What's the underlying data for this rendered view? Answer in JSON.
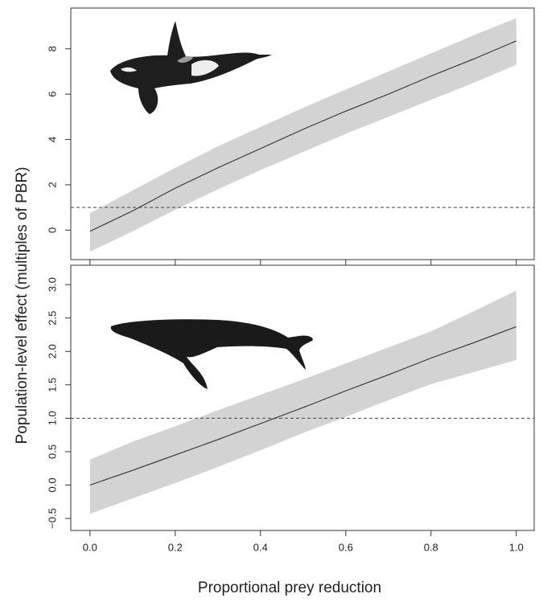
{
  "ylabel": "Population-level effect (multiples of PBR)",
  "xlabel": "Proportional prey reduction",
  "chart_data": [
    {
      "type": "line",
      "x": [
        0,
        0.1,
        0.2,
        0.3,
        0.4,
        0.5,
        0.6,
        0.7,
        0.8,
        0.9,
        1
      ],
      "values": [
        -0.05,
        0.85,
        1.85,
        2.75,
        3.6,
        4.45,
        5.25,
        6.0,
        6.8,
        7.55,
        8.35
      ],
      "lower": [
        -0.95,
        -0.05,
        0.9,
        1.8,
        2.65,
        3.45,
        4.25,
        5.0,
        5.75,
        6.5,
        7.3
      ],
      "upper": [
        0.75,
        1.75,
        2.75,
        3.7,
        4.55,
        5.4,
        6.2,
        7.0,
        7.8,
        8.6,
        9.35
      ],
      "color": "#333333",
      "band_color": "#d3d3d3",
      "hline": 1,
      "xlim": [
        -0.045,
        1.042
      ],
      "xticks": [
        0,
        0.2,
        0.4,
        0.6,
        0.8,
        1
      ],
      "ylim": [
        -1.3,
        9.8
      ],
      "yticks": [
        0,
        2,
        4,
        6,
        8
      ]
    },
    {
      "type": "line",
      "x": [
        0,
        0.1,
        0.2,
        0.3,
        0.4,
        0.5,
        0.6,
        0.7,
        0.8,
        0.9,
        1
      ],
      "values": [
        0,
        0.22,
        0.45,
        0.68,
        0.92,
        1.16,
        1.41,
        1.65,
        1.9,
        2.13,
        2.37
      ],
      "lower": [
        -0.43,
        -0.2,
        0.03,
        0.27,
        0.52,
        0.78,
        1.02,
        1.27,
        1.51,
        1.69,
        1.87
      ],
      "upper": [
        0.38,
        0.65,
        0.88,
        1.12,
        1.35,
        1.58,
        1.82,
        2.06,
        2.3,
        2.6,
        2.91
      ],
      "color": "#333333",
      "band_color": "#d3d3d3",
      "hline": 1,
      "xlim": [
        -0.045,
        1.042
      ],
      "xticks": [
        {
          "value": 0,
          "label": "0.0"
        },
        0.2,
        0.4,
        0.6,
        0.8,
        {
          "value": 1,
          "label": "1.0"
        }
      ],
      "ylim": [
        -0.68,
        3.29
      ],
      "yticks": [
        {
          "value": -0.5,
          "label": "−0.5"
        },
        {
          "value": 0,
          "label": "0.0"
        },
        0.5,
        {
          "value": 1,
          "label": "1.0"
        },
        1.5,
        {
          "value": 2,
          "label": "2.0"
        },
        2.5,
        {
          "value": 3,
          "label": "3.0"
        }
      ]
    }
  ]
}
